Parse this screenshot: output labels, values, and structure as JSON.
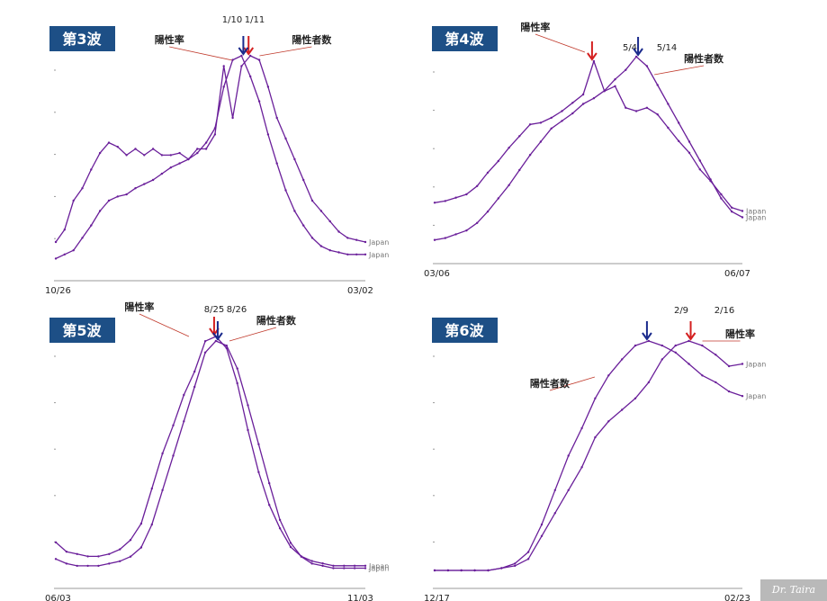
{
  "colors": {
    "line": "#6a1f9a",
    "badge_bg": "#1d4f86",
    "badge_text": "#ffffff",
    "arrow_rate": "#d42020",
    "arrow_cases": "#1a2a8c",
    "axis": "#999999",
    "callout": "#c0392b"
  },
  "watermark": "Dr. Taira",
  "chart_data": [
    {
      "type": "line",
      "title": "第3波",
      "x_start": "10/26",
      "x_end": "03/02",
      "series": [
        {
          "name": "陽性率",
          "end_label": "Japan",
          "values": [
            0.1,
            0.16,
            0.3,
            0.36,
            0.45,
            0.53,
            0.58,
            0.56,
            0.52,
            0.55,
            0.52,
            0.55,
            0.52,
            0.52,
            0.53,
            0.5,
            0.55,
            0.55,
            0.62,
            0.95,
            0.7,
            0.95,
            1.0,
            0.98,
            0.85,
            0.7,
            0.6,
            0.5,
            0.4,
            0.3,
            0.25,
            0.2,
            0.15,
            0.12,
            0.11,
            0.1
          ]
        },
        {
          "name": "陽性者数",
          "end_label": "Japan",
          "values": [
            0.02,
            0.04,
            0.06,
            0.12,
            0.18,
            0.25,
            0.3,
            0.32,
            0.33,
            0.36,
            0.38,
            0.4,
            0.43,
            0.46,
            0.48,
            0.5,
            0.53,
            0.58,
            0.65,
            0.85,
            0.98,
            1.0,
            0.9,
            0.78,
            0.62,
            0.48,
            0.35,
            0.25,
            0.18,
            0.12,
            0.08,
            0.06,
            0.05,
            0.04,
            0.04,
            0.04
          ]
        }
      ],
      "peaks": [
        {
          "label": "1/10",
          "series": "陽性率"
        },
        {
          "label": "1/11",
          "series": "陽性者数"
        }
      ]
    },
    {
      "type": "line",
      "title": "第4波",
      "x_start": "03/06",
      "x_end": "06/07",
      "series": [
        {
          "name": "陽性率",
          "end_label": "Japan",
          "values": [
            0.15,
            0.16,
            0.18,
            0.2,
            0.25,
            0.33,
            0.4,
            0.48,
            0.55,
            0.62,
            0.63,
            0.66,
            0.7,
            0.75,
            0.8,
            1.0,
            0.82,
            0.85,
            0.72,
            0.7,
            0.72,
            0.68,
            0.6,
            0.52,
            0.45,
            0.35,
            0.28,
            0.2,
            0.12,
            0.1
          ]
        },
        {
          "name": "陽性者数",
          "end_label": "Japan",
          "values": [
            0.03,
            0.04,
            0.06,
            0.08,
            0.12,
            0.18,
            0.25,
            0.32,
            0.4,
            0.48,
            0.55,
            0.62,
            0.66,
            0.7,
            0.75,
            0.78,
            0.82,
            0.88,
            0.93,
            1.0,
            0.95,
            0.85,
            0.75,
            0.65,
            0.55,
            0.45,
            0.35,
            0.25,
            0.18,
            0.15
          ]
        }
      ],
      "peaks": [
        {
          "label": "5/4",
          "series": "陽性率"
        },
        {
          "label": "5/14",
          "series": "陽性者数"
        }
      ]
    },
    {
      "type": "line",
      "title": "第5波",
      "x_start": "06/03",
      "x_end": "11/03",
      "series": [
        {
          "name": "陽性率",
          "end_label": "Japan",
          "values": [
            0.12,
            0.08,
            0.07,
            0.06,
            0.06,
            0.07,
            0.09,
            0.13,
            0.2,
            0.35,
            0.5,
            0.62,
            0.75,
            0.85,
            0.98,
            1.0,
            0.95,
            0.8,
            0.6,
            0.42,
            0.28,
            0.18,
            0.1,
            0.06,
            0.04,
            0.03,
            0.02,
            0.02,
            0.02,
            0.02
          ]
        },
        {
          "name": "陽性者数",
          "end_label": "Japan",
          "values": [
            0.05,
            0.03,
            0.02,
            0.02,
            0.02,
            0.03,
            0.04,
            0.06,
            0.1,
            0.2,
            0.35,
            0.5,
            0.65,
            0.8,
            0.95,
            1.0,
            0.98,
            0.88,
            0.72,
            0.55,
            0.38,
            0.22,
            0.12,
            0.06,
            0.03,
            0.02,
            0.01,
            0.01,
            0.01,
            0.01
          ]
        }
      ],
      "peaks": [
        {
          "label": "8/25",
          "series": "陽性率"
        },
        {
          "label": "8/26",
          "series": "陽性者数"
        }
      ]
    },
    {
      "type": "line",
      "title": "第6波",
      "x_start": "12/17",
      "x_end": "02/23",
      "series": [
        {
          "name": "陽性率",
          "end_label": "Japan",
          "values": [
            0.0,
            0.0,
            0.0,
            0.0,
            0.0,
            0.01,
            0.02,
            0.05,
            0.15,
            0.25,
            0.35,
            0.45,
            0.58,
            0.65,
            0.7,
            0.75,
            0.82,
            0.92,
            0.98,
            1.0,
            0.98,
            0.94,
            0.89,
            0.9
          ]
        },
        {
          "name": "陽性者数",
          "end_label": "Japan",
          "values": [
            0.0,
            0.0,
            0.0,
            0.0,
            0.0,
            0.01,
            0.03,
            0.08,
            0.2,
            0.35,
            0.5,
            0.62,
            0.75,
            0.85,
            0.92,
            0.98,
            1.0,
            0.98,
            0.95,
            0.9,
            0.85,
            0.82,
            0.78,
            0.76
          ]
        }
      ],
      "peaks": [
        {
          "label": "2/9",
          "series": "陽性者数"
        },
        {
          "label": "2/16",
          "series": "陽性率"
        }
      ]
    }
  ]
}
